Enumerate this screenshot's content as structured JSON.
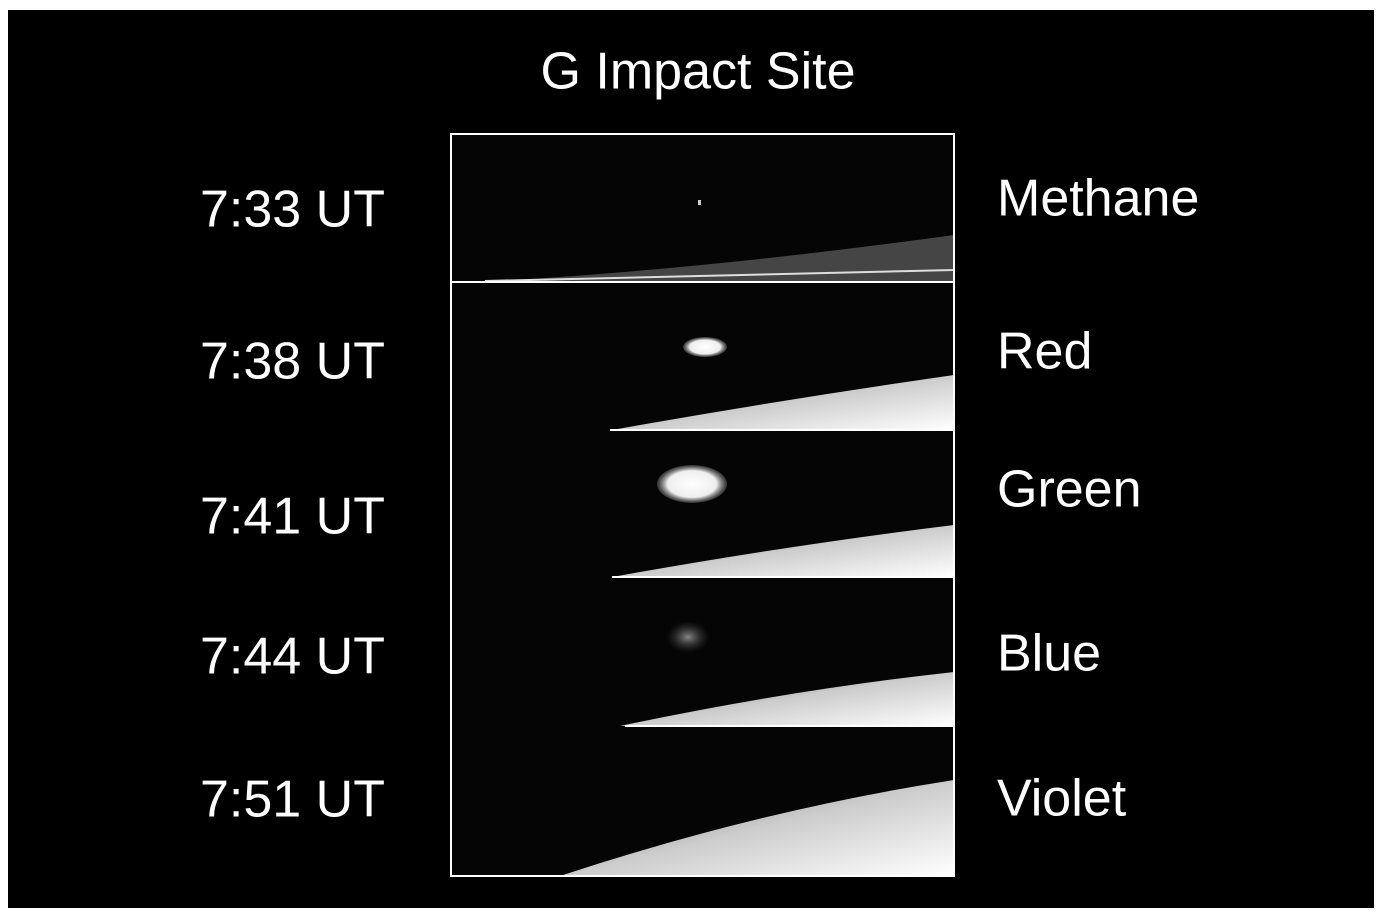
{
  "title": "G Impact Site",
  "rows": [
    {
      "time": "7:33 UT",
      "filter": "Methane"
    },
    {
      "time": "7:38 UT",
      "filter": "Red"
    },
    {
      "time": "7:41 UT",
      "filter": "Green"
    },
    {
      "time": "7:44 UT",
      "filter": "Blue"
    },
    {
      "time": "7:51 UT",
      "filter": "Violet"
    }
  ]
}
